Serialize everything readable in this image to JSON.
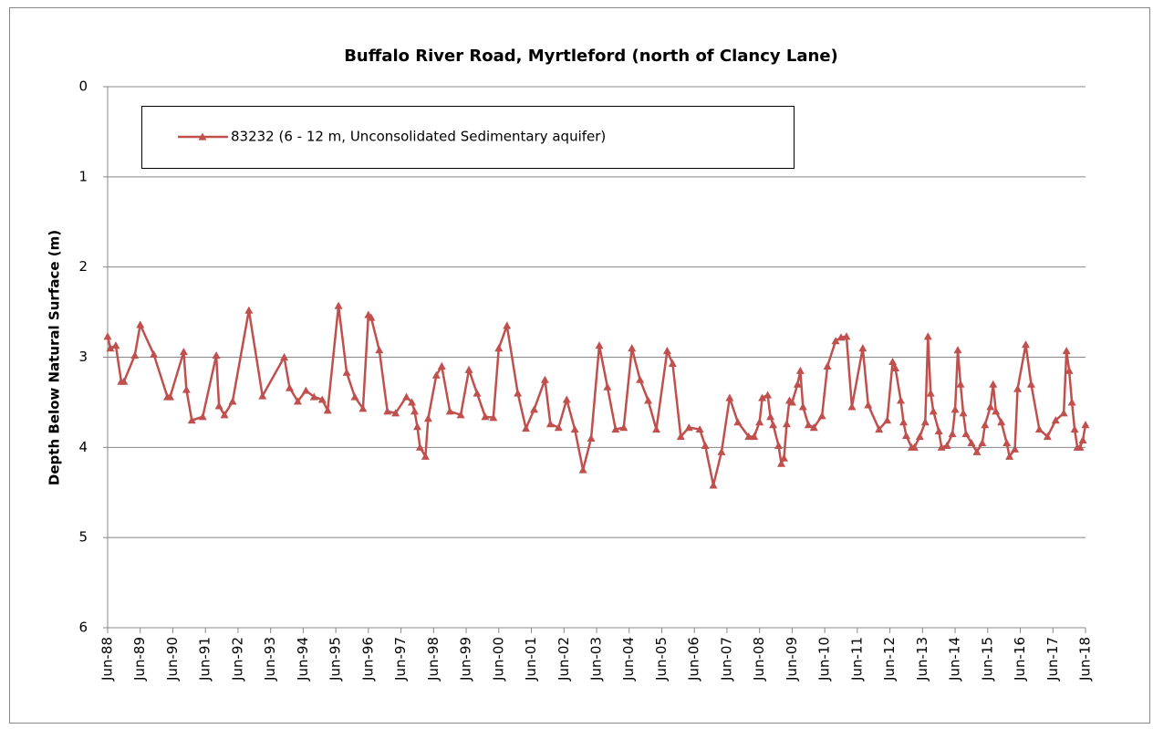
{
  "chart_data": {
    "type": "line",
    "title": "Buffalo River Road, Myrtleford (north of Clancy Lane)",
    "y_label": "Depth Below Natural Surface (m)",
    "y_inverted": true,
    "ylim": [
      0,
      6
    ],
    "yticks": [
      0,
      1,
      2,
      3,
      4,
      5,
      6
    ],
    "grid": true,
    "xlim": [
      "1988-06",
      "2018-06"
    ],
    "xticks": [
      {
        "value": "1988-06",
        "label": "Jun-88"
      },
      {
        "value": "1989-06",
        "label": "Jun-89"
      },
      {
        "value": "1990-06",
        "label": "Jun-90"
      },
      {
        "value": "1991-06",
        "label": "Jun-91"
      },
      {
        "value": "1992-06",
        "label": "Jun-92"
      },
      {
        "value": "1993-06",
        "label": "Jun-93"
      },
      {
        "value": "1994-06",
        "label": "Jun-94"
      },
      {
        "value": "1995-06",
        "label": "Jun-95"
      },
      {
        "value": "1996-06",
        "label": "Jun-96"
      },
      {
        "value": "1997-06",
        "label": "Jun-97"
      },
      {
        "value": "1998-06",
        "label": "Jun-98"
      },
      {
        "value": "1999-06",
        "label": "Jun-99"
      },
      {
        "value": "2000-06",
        "label": "Jun-00"
      },
      {
        "value": "2001-06",
        "label": "Jun-01"
      },
      {
        "value": "2002-06",
        "label": "Jun-02"
      },
      {
        "value": "2003-06",
        "label": "Jun-03"
      },
      {
        "value": "2004-06",
        "label": "Jun-04"
      },
      {
        "value": "2005-06",
        "label": "Jun-05"
      },
      {
        "value": "2006-06",
        "label": "Jun-06"
      },
      {
        "value": "2007-06",
        "label": "Jun-07"
      },
      {
        "value": "2008-06",
        "label": "Jun-08"
      },
      {
        "value": "2009-06",
        "label": "Jun-09"
      },
      {
        "value": "2010-06",
        "label": "Jun-10"
      },
      {
        "value": "2011-06",
        "label": "Jun-11"
      },
      {
        "value": "2012-06",
        "label": "Jun-12"
      },
      {
        "value": "2013-06",
        "label": "Jun-13"
      },
      {
        "value": "2014-06",
        "label": "Jun-14"
      },
      {
        "value": "2015-06",
        "label": "Jun-15"
      },
      {
        "value": "2016-06",
        "label": "Jun-16"
      },
      {
        "value": "2017-06",
        "label": "Jun-17"
      },
      {
        "value": "2018-06",
        "label": "Jun-18"
      }
    ],
    "legend": "top-left",
    "x": [
      "1988-06",
      "1988-07",
      "1988-09",
      "1988-11",
      "1988-12",
      "1989-04",
      "1989-06",
      "1989-11",
      "1990-04",
      "1990-05",
      "1990-10",
      "1990-11",
      "1991-01",
      "1991-05",
      "1991-10",
      "1991-11",
      "1992-01",
      "1992-04",
      "1992-10",
      "1993-03",
      "1993-11",
      "1994-01",
      "1994-04",
      "1994-07",
      "1994-10",
      "1995-01",
      "1995-03",
      "1995-07",
      "1995-10",
      "1996-01",
      "1996-04",
      "1996-06",
      "1996-07",
      "1996-10",
      "1997-01",
      "1997-04",
      "1997-08",
      "1997-10",
      "1997-11",
      "1997-12",
      "1998-01",
      "1998-03",
      "1998-04",
      "1998-07",
      "1998-09",
      "1998-12",
      "1999-04",
      "1999-07",
      "1999-10",
      "2000-01",
      "2000-04",
      "2000-06",
      "2000-09",
      "2001-01",
      "2001-04",
      "2001-07",
      "2001-11",
      "2002-01",
      "2002-04",
      "2002-07",
      "2002-10",
      "2003-01",
      "2003-04",
      "2003-07",
      "2003-10",
      "2004-01",
      "2004-04",
      "2004-07",
      "2004-10",
      "2005-01",
      "2005-04",
      "2005-08",
      "2005-10",
      "2006-01",
      "2006-04",
      "2006-08",
      "2006-10",
      "2007-01",
      "2007-04",
      "2007-07",
      "2007-10",
      "2008-02",
      "2008-04",
      "2008-06",
      "2008-07",
      "2008-09",
      "2008-10",
      "2008-11",
      "2009-01",
      "2009-02",
      "2009-03",
      "2009-04",
      "2009-05",
      "2009-06",
      "2009-08",
      "2009-09",
      "2009-10",
      "2009-12",
      "2010-02",
      "2010-05",
      "2010-07",
      "2010-10",
      "2010-12",
      "2011-02",
      "2011-04",
      "2011-08",
      "2011-10",
      "2012-02",
      "2012-05",
      "2012-07",
      "2012-08",
      "2012-10",
      "2012-11",
      "2012-12",
      "2013-02",
      "2013-03",
      "2013-05",
      "2013-07",
      "2013-08",
      "2013-09",
      "2013-10",
      "2013-12",
      "2014-01",
      "2014-03",
      "2014-05",
      "2014-06",
      "2014-07",
      "2014-08",
      "2014-09",
      "2014-10",
      "2014-12",
      "2015-02",
      "2015-04",
      "2015-05",
      "2015-07",
      "2015-08",
      "2015-09",
      "2015-11",
      "2016-01",
      "2016-02",
      "2016-04",
      "2016-05",
      "2016-08",
      "2016-10",
      "2017-01",
      "2017-04",
      "2017-07",
      "2017-10",
      "2017-11",
      "2017-12",
      "2018-01",
      "2018-02",
      "2018-03",
      "2018-04",
      "2018-05",
      "2018-06"
    ],
    "series": [
      {
        "name": "83232 (6 - 12 m, Unconsolidated Sedimentary aquifer)",
        "color": "#c0504d",
        "values": [
          2.77,
          2.9,
          2.87,
          3.27,
          3.27,
          2.98,
          2.64,
          2.97,
          3.44,
          3.44,
          2.94,
          3.36,
          3.7,
          3.66,
          2.98,
          3.54,
          3.64,
          3.49,
          2.48,
          3.43,
          3.0,
          3.34,
          3.49,
          3.37,
          3.44,
          3.47,
          3.59,
          2.43,
          3.17,
          3.44,
          3.57,
          2.53,
          2.56,
          2.92,
          3.6,
          3.62,
          3.44,
          3.5,
          3.6,
          3.77,
          4.0,
          4.1,
          3.68,
          3.2,
          3.1,
          3.6,
          3.64,
          3.14,
          3.4,
          3.66,
          3.67,
          2.9,
          2.65,
          3.4,
          3.79,
          3.58,
          3.25,
          3.74,
          3.78,
          3.47,
          3.8,
          4.25,
          3.9,
          2.87,
          3.33,
          3.8,
          3.78,
          2.9,
          3.25,
          3.48,
          3.8,
          2.93,
          3.07,
          3.88,
          3.78,
          3.8,
          3.98,
          4.42,
          4.05,
          3.45,
          3.72,
          3.88,
          3.88,
          3.72,
          3.45,
          3.42,
          3.66,
          3.75,
          3.98,
          4.18,
          4.12,
          3.74,
          3.48,
          3.5,
          3.3,
          3.15,
          3.55,
          3.75,
          3.78,
          3.65,
          3.1,
          2.82,
          2.78,
          2.77,
          3.55,
          2.9,
          3.53,
          3.8,
          3.7,
          3.05,
          3.12,
          3.48,
          3.72,
          3.87,
          4.0,
          4.0,
          3.88,
          3.72,
          2.77,
          3.4,
          3.6,
          3.82,
          4.0,
          3.98,
          3.85,
          3.58,
          2.92,
          3.3,
          3.62,
          3.85,
          3.95,
          4.05,
          3.95,
          3.75,
          3.55,
          3.3,
          3.6,
          3.72,
          3.95,
          4.1,
          4.02,
          3.35,
          2.86,
          3.3,
          3.8,
          3.88,
          3.7,
          3.62,
          2.93,
          3.15,
          3.5,
          3.8,
          4.0,
          4.0,
          3.92,
          3.75
        ]
      }
    ]
  }
}
